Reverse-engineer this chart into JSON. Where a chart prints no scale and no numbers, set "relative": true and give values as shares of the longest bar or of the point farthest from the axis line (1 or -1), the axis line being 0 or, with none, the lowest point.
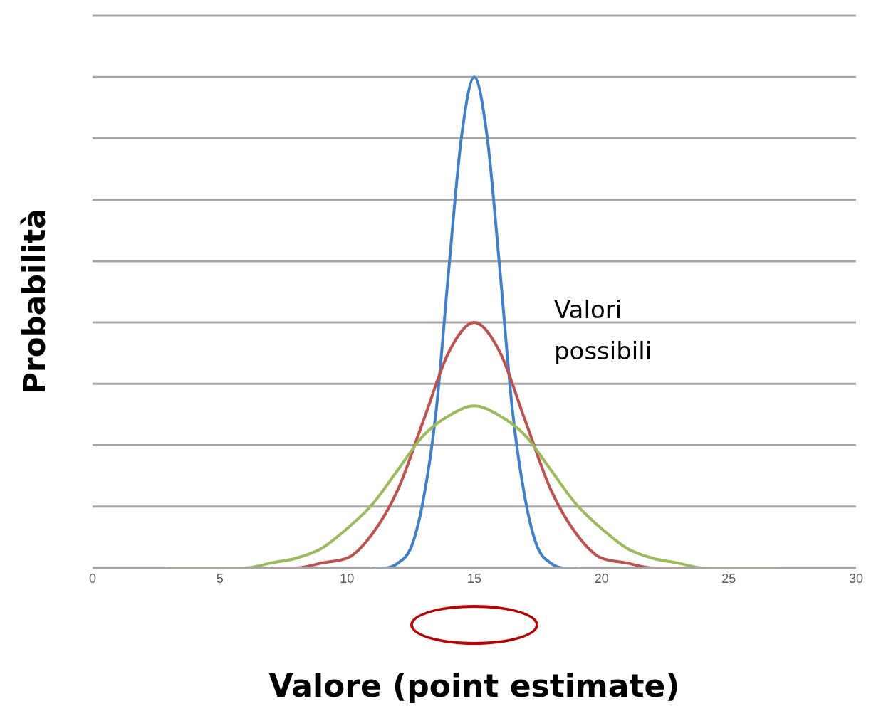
{
  "chart_data": {
    "type": "line",
    "xlabel": "Valore (point estimate)",
    "ylabel": "Probabilità",
    "relative": true,
    "xlim": [
      0,
      30
    ],
    "xticks": [
      0,
      5,
      10,
      15,
      20,
      25,
      30
    ],
    "grid": "y",
    "marker": "none",
    "line_style": "solid",
    "annotations": [
      "Valori possibili"
    ],
    "series": [
      {
        "color": "#3f7fd0",
        "x": [
          11,
          11.5,
          12,
          12.5,
          13,
          13.5,
          14,
          14.5,
          15,
          15.5,
          16,
          16.5,
          17,
          17.5,
          18,
          18.5,
          19
        ],
        "values": [
          0,
          0,
          0.01,
          0.04,
          0.14,
          0.32,
          0.61,
          0.88,
          1,
          0.88,
          0.61,
          0.32,
          0.14,
          0.04,
          0.01,
          0,
          0
        ]
      },
      {
        "color": "#c0504d",
        "x": [
          7,
          8,
          9,
          10,
          11,
          12,
          13,
          14,
          15,
          16,
          17,
          18,
          19,
          20,
          21,
          22,
          23
        ],
        "values": [
          0,
          0,
          0.01,
          0.02,
          0.07,
          0.16,
          0.3,
          0.44,
          0.5,
          0.44,
          0.3,
          0.16,
          0.07,
          0.02,
          0.01,
          0,
          0
        ]
      },
      {
        "color": "#9bbb59",
        "x": [
          3,
          4,
          5,
          6,
          7,
          8,
          9,
          10,
          11,
          12,
          13,
          14,
          15,
          16,
          17,
          18,
          19,
          20,
          21,
          22,
          23,
          24,
          25,
          26,
          27
        ],
        "values": [
          0,
          0,
          0,
          0,
          0.01,
          0.02,
          0.04,
          0.08,
          0.13,
          0.2,
          0.27,
          0.31,
          0.33,
          0.31,
          0.27,
          0.2,
          0.13,
          0.08,
          0.04,
          0.02,
          0.01,
          0,
          0,
          0,
          0
        ]
      }
    ]
  }
}
